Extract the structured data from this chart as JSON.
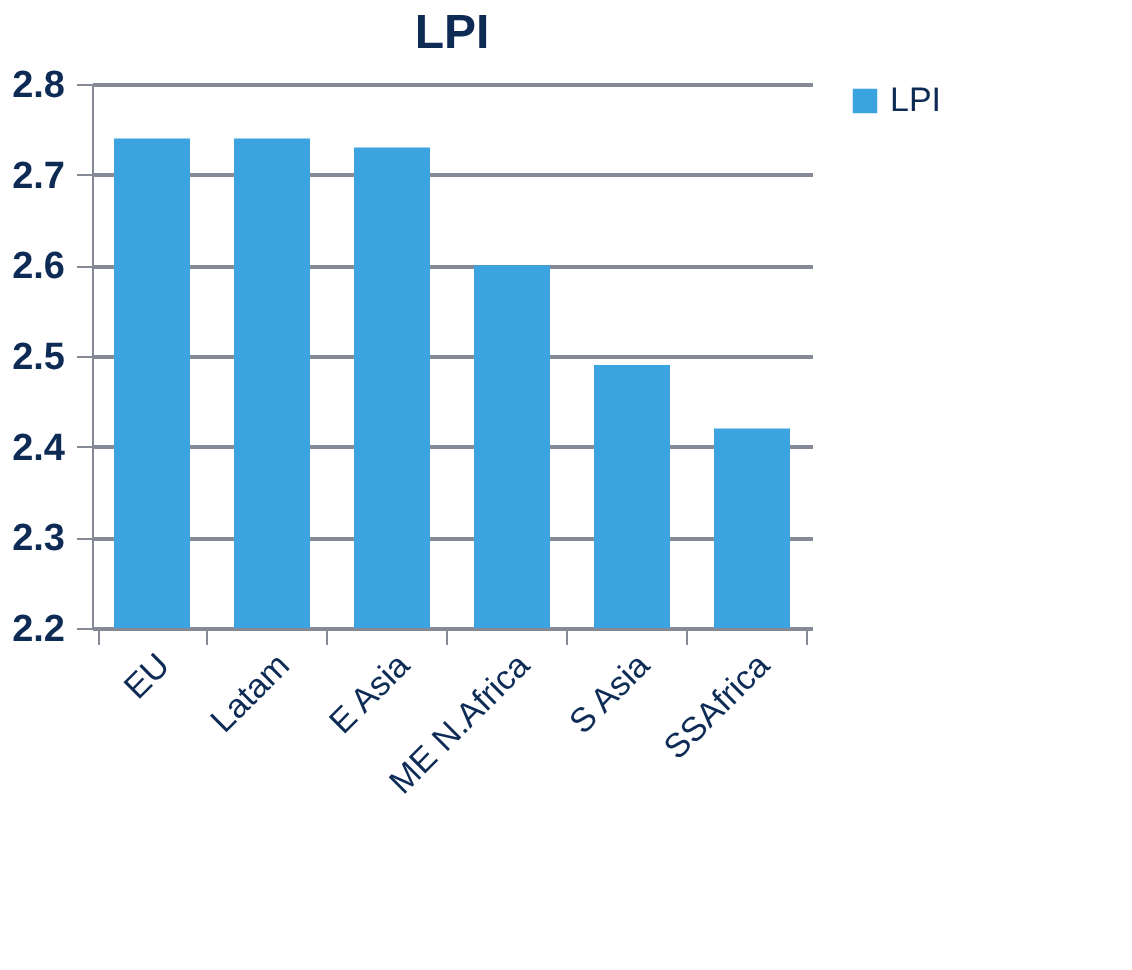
{
  "chart_data": {
    "type": "bar",
    "title": "LPI",
    "categories": [
      "EU",
      "Latam",
      "E Asia",
      "ME N.Africa",
      "S Asia",
      "SSAfrica"
    ],
    "series": [
      {
        "name": "LPI",
        "color": "#3aa3e0",
        "values": [
          2.74,
          2.74,
          2.73,
          2.6,
          2.49,
          2.42
        ]
      }
    ],
    "ylim": [
      2.2,
      2.8
    ],
    "yticks": [
      2.2,
      2.3,
      2.4,
      2.5,
      2.6,
      2.7,
      2.8
    ],
    "grid": "y",
    "legend": "right"
  }
}
